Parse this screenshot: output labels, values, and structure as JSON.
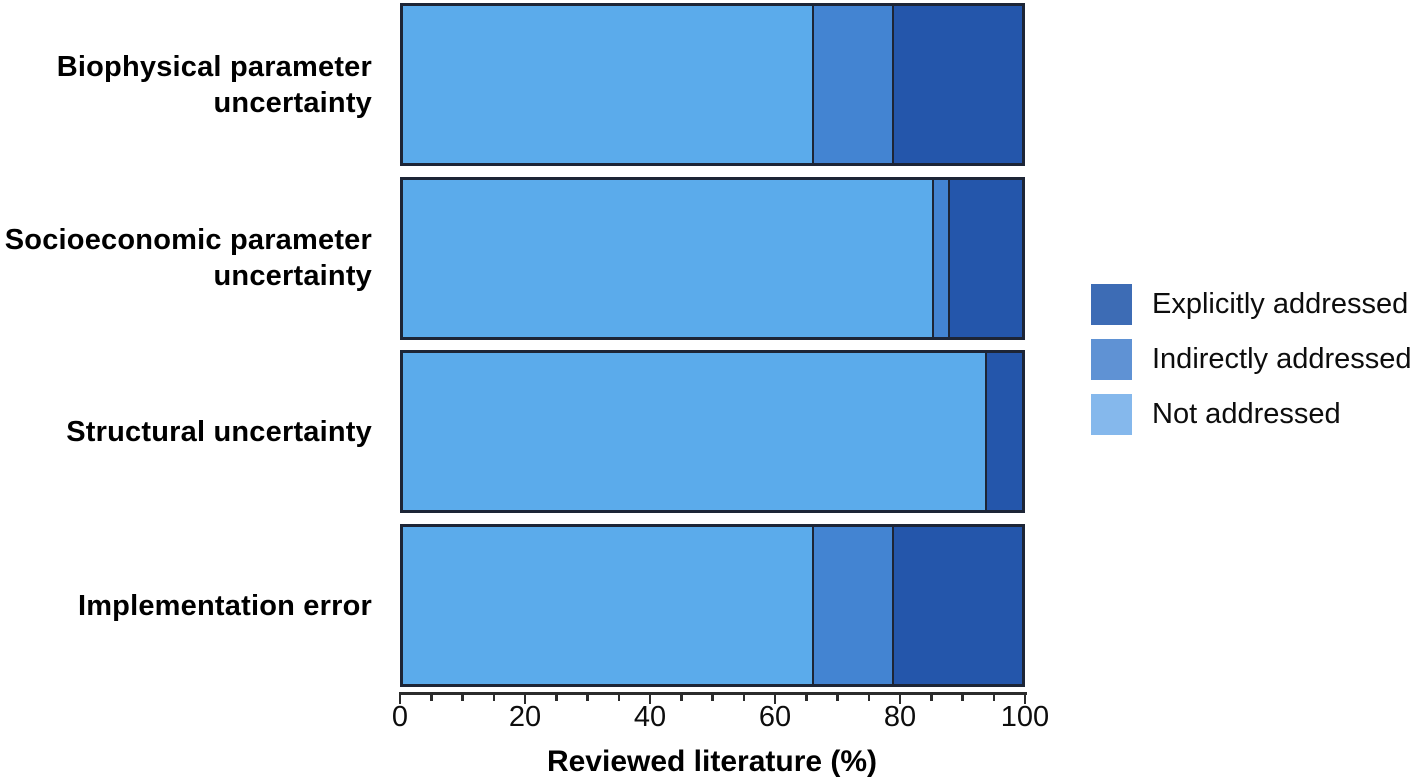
{
  "figure": {
    "background": "#ffffff",
    "bar_stroke_color": "#1d2536",
    "axis_color": "#2b2b2b",
    "text_color": "#000000"
  },
  "chart_data": {
    "type": "bar",
    "orientation": "horizontal",
    "stacked": true,
    "title": "",
    "xlabel": "Reviewed literature (%)",
    "ylabel": "",
    "xlim": [
      0,
      100
    ],
    "x_major_ticks": [
      0,
      20,
      40,
      60,
      80,
      100
    ],
    "x_minor_tick_step": 5,
    "grid": false,
    "categories": [
      "Biophysical parameter uncertainty",
      "Socioeconomic parameter uncertainty",
      "Structural uncertainty",
      "Implementation error"
    ],
    "category_label_lines": [
      [
        "Biophysical parameter",
        "uncertainty"
      ],
      [
        "Socioeconomic parameter",
        "uncertainty"
      ],
      [
        "Structural uncertainty"
      ],
      [
        "Implementation error"
      ]
    ],
    "series": [
      {
        "name": "Not addressed",
        "color": "#5babeb",
        "values": [
          66,
          85.5,
          94,
          66
        ]
      },
      {
        "name": "Indirectly addressed",
        "color": "#4384d2",
        "values": [
          13,
          2.5,
          0,
          13
        ]
      },
      {
        "name": "Explicitly addressed",
        "color": "#2456ab",
        "values": [
          21,
          12,
          6,
          21
        ]
      }
    ],
    "legend": {
      "position": "right",
      "items": [
        {
          "label": "Explicitly addressed",
          "swatch_color": "#3d6cb5"
        },
        {
          "label": "Indirectly addressed",
          "swatch_color": "#5f92d4"
        },
        {
          "label": "Not addressed",
          "swatch_color": "#85b8ec"
        }
      ]
    }
  }
}
